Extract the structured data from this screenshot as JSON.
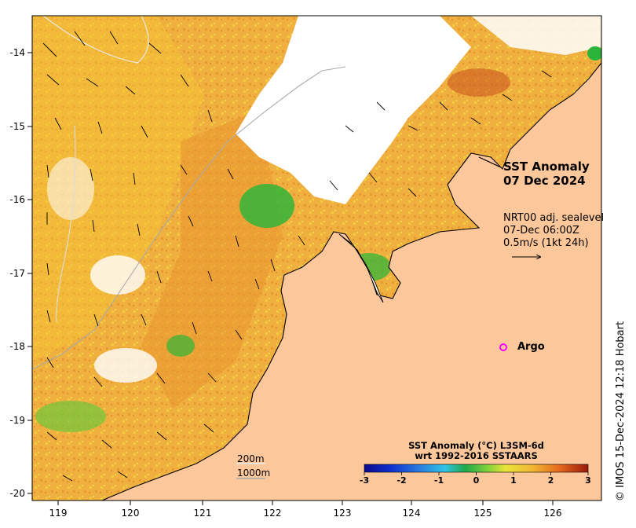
{
  "map": {
    "title_line1": "SST Anomaly",
    "title_line2": "07 Dec 2024",
    "info_line1": "NRT00 adj. sealevel",
    "info_line2": "07-Dec 06:00Z",
    "info_line3": "0.5m/s (1kt 24h)",
    "argo_label": "Argo",
    "scale_label_1": "200m",
    "scale_label_2": "1000m",
    "credit": "© IMOS 15-Dec-2024 12:18 Hobart",
    "colorbar": {
      "title_line1": "SST Anomaly (°C) L3SM-6d",
      "title_line2": "wrt 1992-2016 SSTAARS",
      "ticks": [
        "-3",
        "-2",
        "-1",
        "0",
        "1",
        "2",
        "3"
      ]
    },
    "x_ticks": [
      "119",
      "120",
      "121",
      "122",
      "123",
      "124",
      "125",
      "126"
    ],
    "y_ticks": [
      "-14",
      "-15",
      "-16",
      "-17",
      "-18",
      "-19",
      "-20"
    ],
    "colors": {
      "land": "#fcc79a",
      "sst_warm": "#f0a63a",
      "sst_mid": "#f3c534",
      "sst_cool": "#31b538",
      "argo_marker": "#ff00ff"
    }
  }
}
